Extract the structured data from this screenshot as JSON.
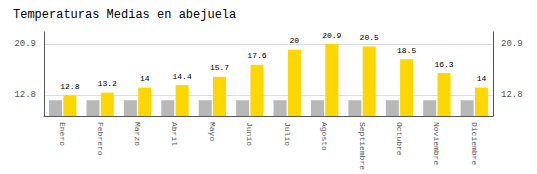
{
  "chart_data": {
    "type": "bar",
    "title": "Temperaturas Medias en abejuela",
    "categories": [
      "Enero",
      "Febrero",
      "Marzo",
      "Abril",
      "Mayo",
      "Junio",
      "Julio",
      "Agosto",
      "Septiembre",
      "Octubre",
      "Noviembre",
      "Diciembre"
    ],
    "series": [
      {
        "color": "#B8B8B8",
        "values": [
          12.0,
          12.0,
          12.0,
          12.0,
          12.0,
          12.0,
          12.0,
          12.0,
          12.0,
          12.0,
          12.0,
          12.0
        ]
      },
      {
        "color": "#FFD700",
        "data_labels": true,
        "values": [
          12.8,
          13.2,
          14.0,
          14.4,
          15.7,
          17.6,
          20.0,
          20.9,
          20.5,
          18.5,
          16.3,
          14.0
        ]
      }
    ],
    "ylim": [
      9.5,
      22.8
    ],
    "yticks": [
      12.8,
      20.9
    ],
    "y2lim": [
      9.5,
      22.8
    ],
    "y2ticks": [
      12.8,
      20.9
    ],
    "grid": true
  }
}
